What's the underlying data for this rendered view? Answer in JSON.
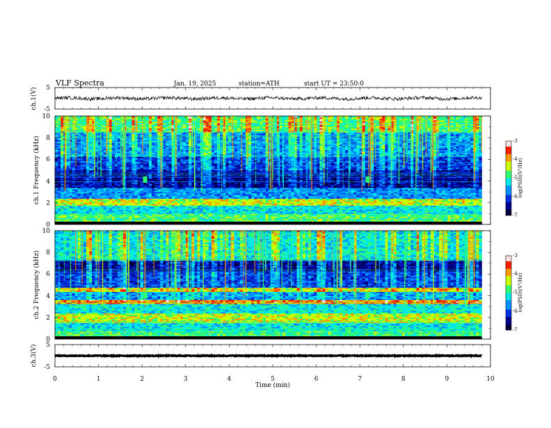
{
  "header": {
    "title": "VLF Spectra",
    "date": "Jan. 19, 2025",
    "station": "station=ATH",
    "start_ut": "start UT = 23:50:0"
  },
  "colors": {
    "spectrogram_scale": [
      "#00003a",
      "#00008c",
      "#0030e0",
      "#0090ff",
      "#00e8e8",
      "#30ff70",
      "#c8ff00",
      "#ff9a00",
      "#ff1e00",
      "#ffe0e0"
    ],
    "waveform_trace": "#000000"
  },
  "chart_data": [
    {
      "type": "line",
      "name": "ch1-waveform",
      "ylabel": "ch.1(V)",
      "ylim": [
        -5,
        5
      ],
      "yticks": [
        "5",
        "-5"
      ],
      "xlim": [
        0,
        10
      ],
      "baseline": 0,
      "amplitude_approx": 0.8
    },
    {
      "type": "heatmap",
      "name": "ch1-spectrogram",
      "ylabel": "ch.1 Frequency (kHz)",
      "ylim": [
        0,
        10
      ],
      "yticks": [
        "0",
        "2",
        "4",
        "6",
        "8",
        "10"
      ],
      "xlim": [
        0,
        10
      ],
      "data_end_min": 9.8,
      "colorbar": {
        "label": "log(PSD)(V²/Hz)",
        "range": [
          -7,
          -3
        ],
        "ticks": [
          "-3",
          "-4",
          "-5",
          "-6",
          "-7"
        ]
      },
      "bands": [
        {
          "f": [
            0,
            0.3
          ],
          "level": 2
        },
        {
          "f": [
            0.3,
            1.0
          ],
          "level": 5
        },
        {
          "f": [
            1.0,
            1.8
          ],
          "level": 4
        },
        {
          "f": [
            1.8,
            2.4
          ],
          "level": 6
        },
        {
          "f": [
            2.4,
            3.4
          ],
          "level": 3
        },
        {
          "f": [
            3.4,
            5.0
          ],
          "level": 1
        },
        {
          "f": [
            5.0,
            6.3
          ],
          "level": 2
        },
        {
          "f": [
            6.3,
            8.5
          ],
          "level": 3
        },
        {
          "f": [
            8.5,
            10.0
          ],
          "level": 5
        }
      ],
      "spots": [
        {
          "t": 2.07,
          "f": 4.1
        },
        {
          "t": 7.18,
          "f": 4.1
        }
      ]
    },
    {
      "type": "heatmap",
      "name": "ch2-spectrogram",
      "ylabel": "ch.2 Frequency (kHz)",
      "ylim": [
        0,
        10
      ],
      "yticks": [
        "0",
        "2",
        "4",
        "6",
        "8",
        "10"
      ],
      "xlim": [
        0,
        10
      ],
      "data_end_min": 9.8,
      "colorbar": {
        "label": "log(PSD)(V²/Hz)",
        "range": [
          -7,
          -3
        ],
        "ticks": [
          "-3",
          "-4",
          "-5",
          "-6",
          "-7"
        ]
      },
      "bands": [
        {
          "f": [
            0,
            0.8
          ],
          "level": 5
        },
        {
          "f": [
            0.8,
            1.5
          ],
          "level": 4
        },
        {
          "f": [
            1.5,
            2.4
          ],
          "level": 6
        },
        {
          "f": [
            2.4,
            3.3
          ],
          "level": 4
        },
        {
          "f": [
            3.3,
            3.6
          ],
          "level": 7
        },
        {
          "f": [
            3.6,
            4.4
          ],
          "level": 3
        },
        {
          "f": [
            4.4,
            4.8
          ],
          "level": 6
        },
        {
          "f": [
            4.8,
            6.3
          ],
          "level": 2
        },
        {
          "f": [
            6.3,
            7.3
          ],
          "level": 1
        },
        {
          "f": [
            7.3,
            10.0
          ],
          "level": 4
        }
      ],
      "spots": [
        {
          "t": 2.07,
          "f": 4.0
        },
        {
          "t": 7.18,
          "f": 4.0
        }
      ]
    },
    {
      "type": "line",
      "name": "ch3-waveform",
      "ylabel": "ch.3(V)",
      "ylim": [
        -5,
        5
      ],
      "yticks": [
        "5",
        "-5"
      ],
      "xlim": [
        0,
        10
      ],
      "baseline": 0,
      "amplitude_approx": 0.2
    }
  ],
  "x_axis": {
    "label": "Time (min)",
    "ticks": [
      "0",
      "1",
      "2",
      "3",
      "4",
      "5",
      "6",
      "7",
      "8",
      "9",
      "10"
    ]
  }
}
